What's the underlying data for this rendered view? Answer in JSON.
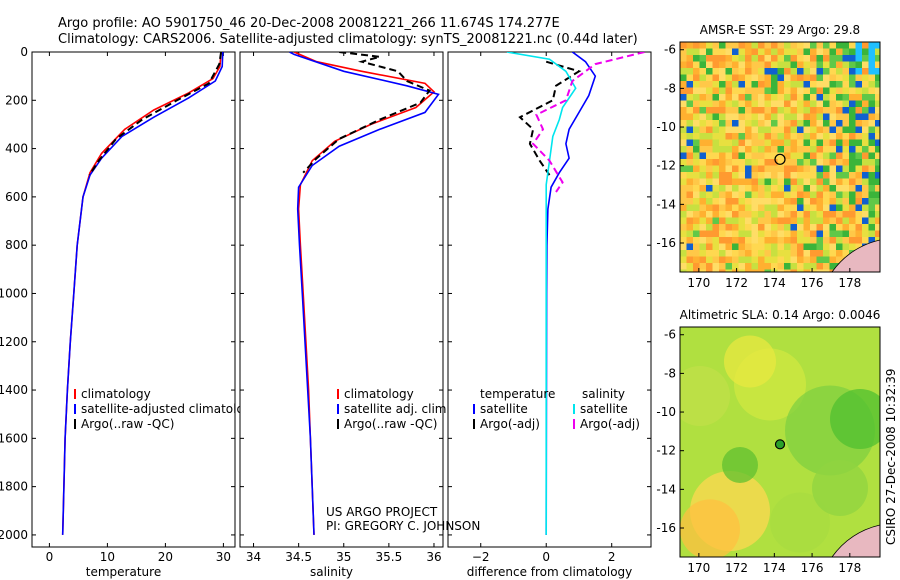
{
  "header": {
    "line1": "Argo profile: AO 5901750_46 20-Dec-2008 20081221_266 11.674S 174.277E",
    "line2": "Climatology: CARS2006. Satellite-adjusted climatology: synTS_20081221.nc (0.44d later)"
  },
  "colors": {
    "clim": "#ff0000",
    "sat": "#0000ff",
    "argo": "#000000",
    "sat_diff_s": "#00e5ee",
    "argo_adj_s": "#ee00ee"
  },
  "chart_data": [
    {
      "id": "temperature",
      "type": "line",
      "xlabel": "temperature",
      "xlim": [
        -3,
        32
      ],
      "ylim": [
        0,
        2050
      ],
      "xticks": [
        0,
        10,
        20,
        30
      ],
      "xtick_labels": [
        "0",
        "10",
        "20",
        "30"
      ],
      "yticks": [
        0,
        200,
        400,
        600,
        800,
        1000,
        1200,
        1400,
        1600,
        1800,
        2000
      ],
      "ytick_labels": [
        "0",
        "200",
        "400",
        "600",
        "800",
        "1000",
        "1200",
        "1400",
        "1600",
        "1800",
        "2000"
      ],
      "legend": [
        "climatology",
        "satellite-adjusted climatology",
        "Argo(..raw -QC)"
      ],
      "series": [
        {
          "name": "climatology",
          "color": "#ff0000",
          "dash": false,
          "points": [
            [
              29.6,
              0
            ],
            [
              29.4,
              60
            ],
            [
              28.2,
              110
            ],
            [
              24,
              170
            ],
            [
              18,
              240
            ],
            [
              13,
              320
            ],
            [
              9,
              420
            ],
            [
              7,
              500
            ],
            [
              5.8,
              600
            ],
            [
              4.8,
              800
            ],
            [
              4.2,
              1000
            ],
            [
              3.6,
              1200
            ],
            [
              3.1,
              1400
            ],
            [
              2.7,
              1600
            ],
            [
              2.5,
              1800
            ],
            [
              2.3,
              2000
            ]
          ]
        },
        {
          "name": "satellite-adjusted climatology",
          "color": "#0000ff",
          "dash": false,
          "points": [
            [
              29.9,
              0
            ],
            [
              29.8,
              60
            ],
            [
              28.6,
              120
            ],
            [
              24,
              190
            ],
            [
              18,
              270
            ],
            [
              12.5,
              350
            ],
            [
              9,
              440
            ],
            [
              7,
              510
            ],
            [
              5.8,
              600
            ],
            [
              4.8,
              800
            ],
            [
              4.2,
              1000
            ],
            [
              3.6,
              1200
            ],
            [
              3.1,
              1400
            ],
            [
              2.7,
              1600
            ],
            [
              2.5,
              1800
            ],
            [
              2.3,
              2000
            ]
          ]
        },
        {
          "name": "Argo(..raw -QC)",
          "color": "#000000",
          "dash": true,
          "points": [
            [
              29.6,
              0
            ],
            [
              29.3,
              50
            ],
            [
              27.5,
              130
            ],
            [
              22,
              200
            ],
            [
              16,
              280
            ],
            [
              11.5,
              360
            ],
            [
              8.5,
              450
            ],
            [
              6.9,
              510
            ]
          ]
        }
      ]
    },
    {
      "id": "salinity",
      "type": "line",
      "xlabel": "salinity",
      "xlim": [
        33.85,
        36.1
      ],
      "ylim": [
        0,
        2050
      ],
      "xticks": [
        34,
        34.5,
        35,
        35.5,
        36
      ],
      "xtick_labels": [
        "34",
        "34.5",
        "35",
        "35.5",
        "36"
      ],
      "yticks": [
        0,
        200,
        400,
        600,
        800,
        1000,
        1200,
        1400,
        1600,
        1800,
        2000
      ],
      "ytick_labels": [],
      "legend": [
        "climatology",
        "satellite adj. clim.",
        "Argo(..raw -QC)"
      ],
      "series": [
        {
          "name": "climatology",
          "color": "#ff0000",
          "dash": false,
          "points": [
            [
              34.45,
              0
            ],
            [
              34.7,
              40
            ],
            [
              35.2,
              80
            ],
            [
              35.9,
              130
            ],
            [
              36.0,
              165
            ],
            [
              35.8,
              230
            ],
            [
              35.3,
              300
            ],
            [
              34.9,
              370
            ],
            [
              34.65,
              450
            ],
            [
              34.52,
              550
            ],
            [
              34.5,
              650
            ],
            [
              34.52,
              800
            ],
            [
              34.55,
              1000
            ],
            [
              34.58,
              1200
            ],
            [
              34.61,
              1400
            ],
            [
              34.63,
              1600
            ],
            [
              34.65,
              1800
            ],
            [
              34.67,
              2000
            ]
          ]
        },
        {
          "name": "satellite adj. clim.",
          "color": "#0000ff",
          "dash": false,
          "points": [
            [
              34.4,
              0
            ],
            [
              34.45,
              10
            ],
            [
              35.0,
              80
            ],
            [
              35.7,
              140
            ],
            [
              36.05,
              175
            ],
            [
              35.9,
              250
            ],
            [
              35.4,
              320
            ],
            [
              34.95,
              390
            ],
            [
              34.65,
              470
            ],
            [
              34.5,
              560
            ],
            [
              34.49,
              650
            ],
            [
              34.51,
              800
            ],
            [
              34.54,
              1000
            ],
            [
              34.57,
              1200
            ],
            [
              34.6,
              1400
            ],
            [
              34.63,
              1600
            ],
            [
              34.65,
              1800
            ],
            [
              34.67,
              2000
            ]
          ]
        },
        {
          "name": "Argo(..raw -QC)",
          "color": "#000000",
          "dash": true,
          "points": [
            [
              34.95,
              0
            ],
            [
              35.4,
              20
            ],
            [
              35.2,
              40
            ],
            [
              35.6,
              80
            ],
            [
              35.7,
              120
            ],
            [
              35.95,
              160
            ],
            [
              35.85,
              210
            ],
            [
              35.4,
              280
            ],
            [
              34.95,
              360
            ],
            [
              34.7,
              440
            ],
            [
              34.55,
              500
            ]
          ]
        }
      ]
    },
    {
      "id": "difference",
      "type": "line",
      "xlabel": "difference from climatology",
      "xlim": [
        -3,
        3.2
      ],
      "ylim": [
        0,
        2050
      ],
      "xticks": [
        -2,
        0,
        2
      ],
      "xtick_labels": [
        "−2",
        "0",
        "2"
      ],
      "yticks": [
        0,
        200,
        400,
        600,
        800,
        1000,
        1200,
        1400,
        1600,
        1800,
        2000
      ],
      "ytick_labels": [],
      "legend_header": [
        "temperature",
        "salinity"
      ],
      "legend": [
        "satellite",
        "Argo(-adj)",
        "satellite",
        "Argo(-adj)"
      ],
      "series": [
        {
          "name": "satellite",
          "group": "temperature",
          "color": "#0000ff",
          "dash": false,
          "points": [
            [
              0.8,
              0
            ],
            [
              1.2,
              40
            ],
            [
              1.5,
              100
            ],
            [
              1.3,
              180
            ],
            [
              1.0,
              250
            ],
            [
              0.7,
              320
            ],
            [
              0.6,
              380
            ],
            [
              0.7,
              440
            ],
            [
              0.4,
              500
            ],
            [
              0.15,
              560
            ],
            [
              0.05,
              650
            ],
            [
              0.02,
              800
            ],
            [
              0.01,
              1000
            ],
            [
              0,
              2000
            ]
          ]
        },
        {
          "name": "Argo(-adj)",
          "group": "temperature",
          "color": "#000000",
          "dash": true,
          "points": [
            [
              0,
              40
            ],
            [
              1,
              80
            ],
            [
              0.3,
              140
            ],
            [
              0.2,
              200
            ],
            [
              -0.8,
              270
            ],
            [
              -0.4,
              320
            ],
            [
              -0.5,
              380
            ],
            [
              -0.2,
              450
            ],
            [
              0.1,
              510
            ]
          ]
        },
        {
          "name": "satellite",
          "group": "salinity",
          "color": "#00e5ee",
          "dash": false,
          "points": [
            [
              -1.2,
              0
            ],
            [
              0.1,
              30
            ],
            [
              0.6,
              80
            ],
            [
              0.9,
              150
            ],
            [
              0.5,
              230
            ],
            [
              0.4,
              280
            ],
            [
              0.2,
              350
            ],
            [
              0.1,
              450
            ],
            [
              0,
              550
            ],
            [
              0,
              1000
            ],
            [
              0,
              2000
            ]
          ]
        },
        {
          "name": "Argo(-adj)",
          "group": "salinity",
          "color": "#ee00ee",
          "dash": true,
          "points": [
            [
              3.0,
              0
            ],
            [
              1.5,
              50
            ],
            [
              0.8,
              120
            ],
            [
              0.6,
              200
            ],
            [
              -0.3,
              260
            ],
            [
              -0.1,
              320
            ],
            [
              -0.4,
              380
            ],
            [
              0.1,
              450
            ],
            [
              0.5,
              540
            ],
            [
              0.3,
              580
            ]
          ]
        }
      ]
    },
    {
      "id": "sst_map",
      "type": "heatmap",
      "title": "AMSR-E SST: 29 Argo: 29.8",
      "xlim": [
        169,
        179.6
      ],
      "ylim": [
        -17.5,
        -5.6
      ],
      "xticks": [
        170,
        172,
        174,
        176,
        178
      ],
      "xtick_labels": [
        "170",
        "172",
        "174",
        "176",
        "178"
      ],
      "yticks": [
        -6,
        -8,
        -10,
        -12,
        -14,
        -16
      ],
      "ytick_labels": [
        "-6",
        "-8",
        "-10",
        "-12",
        "-14",
        "-16"
      ],
      "marker": [
        174.3,
        -11.67
      ]
    },
    {
      "id": "sla_map",
      "type": "heatmap",
      "title": "Altimetric SLA: 0.14 Argo: 0.0046",
      "xlim": [
        169,
        179.6
      ],
      "ylim": [
        -17.5,
        -5.6
      ],
      "xticks": [
        170,
        172,
        174,
        176,
        178
      ],
      "xtick_labels": [
        "170",
        "172",
        "174",
        "176",
        "178"
      ],
      "yticks": [
        -6,
        -8,
        -10,
        -12,
        -14,
        -16
      ],
      "ytick_labels": [
        "-6",
        "-8",
        "-10",
        "-12",
        "-14",
        "-16"
      ],
      "marker": [
        174.3,
        -11.67
      ]
    }
  ],
  "annotations": {
    "project": "US ARGO PROJECT",
    "pi": "PI: GREGORY C. JOHNSON",
    "credit": "CSIRO 27-Dec-2008 10:32:39"
  }
}
